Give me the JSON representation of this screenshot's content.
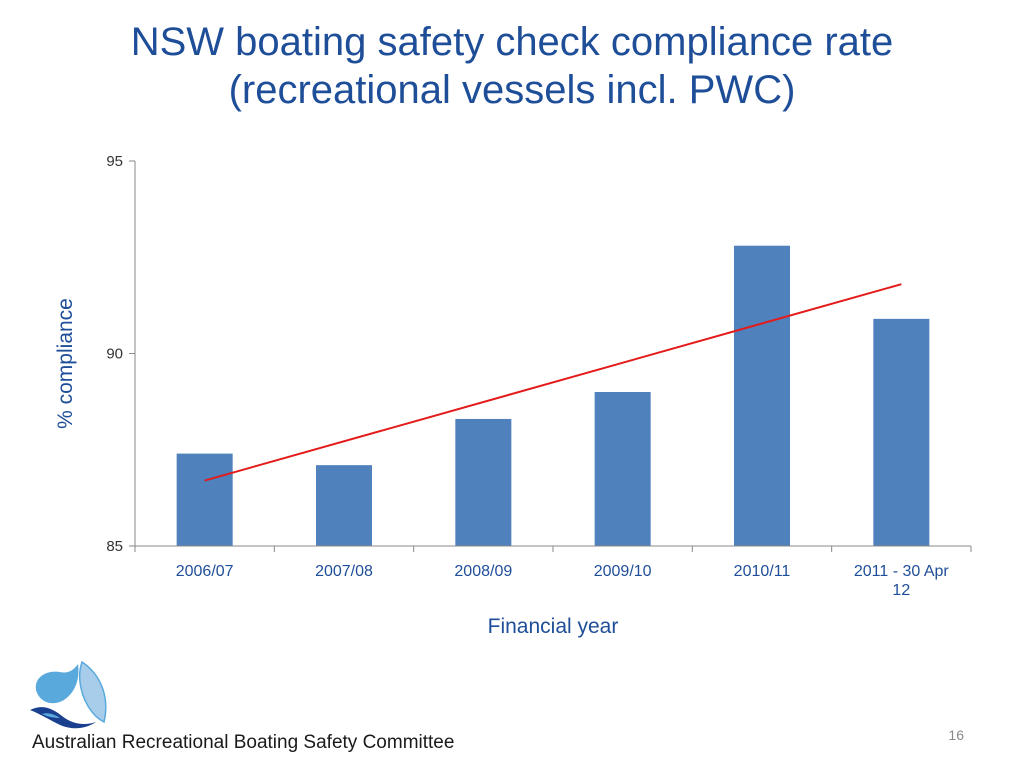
{
  "slide": {
    "title_line1": "NSW boating safety check compliance rate",
    "title_line2": "(recreational vessels incl. PWC)",
    "footer_org": "Australian Recreational Boating Safety Committee",
    "page_number": "16"
  },
  "colors": {
    "title": "#1f4e99",
    "bar": "#4f81bd",
    "trendline": "#e31b1b",
    "axis": "#888888",
    "axis_labels": "#1f4e99",
    "tick_labels": "#333333"
  },
  "chart_data": {
    "type": "bar",
    "title": "NSW boating safety check compliance rate (recreational vessels incl. PWC)",
    "xlabel": "Financial year",
    "ylabel": "% compliance",
    "categories": [
      [
        "2006/07"
      ],
      [
        "2007/08"
      ],
      [
        "2008/09"
      ],
      [
        "2009/10"
      ],
      [
        "2010/11"
      ],
      [
        "2011 - 30 Apr",
        "12"
      ]
    ],
    "values": [
      87.4,
      87.1,
      88.3,
      89.0,
      92.8,
      90.9
    ],
    "ylim": [
      85,
      95
    ],
    "yticks": [
      85,
      90,
      95
    ],
    "trendline": {
      "type": "linear",
      "start": 86.7,
      "end": 91.8
    },
    "grid": false,
    "legend": "none"
  }
}
